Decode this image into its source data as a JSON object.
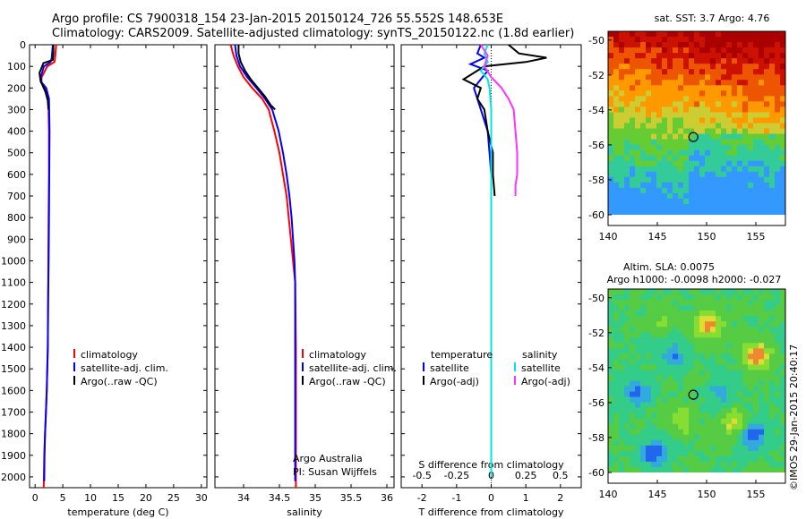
{
  "header": {
    "line1": "Argo profile: CS 7900318_154 23-Jan-2015 20150124_726 55.552S 148.653E",
    "line2": "Climatology: CARS2009. Satellite-adjusted climatology: synTS_20150122.nc (1.8d earlier)"
  },
  "colors": {
    "climatology": "#ff0000",
    "satellite": "#0000ff",
    "argo": "#000000",
    "s_satellite": "#00e5e5",
    "s_argo": "#ff33ff"
  },
  "credit": {
    "line1": "Argo Australia",
    "line2": "PI: Susan Wijffels"
  },
  "imos_stamp": "©IMOS 29-Jan-2015 20:40:17",
  "chart_data": [
    {
      "type": "line",
      "xlabel": "temperature (deg C)",
      "xlim": [
        -1,
        31
      ],
      "xticks": [
        0,
        5,
        10,
        15,
        20,
        25,
        30
      ],
      "ylim": [
        2050,
        0
      ],
      "yticks": [
        0,
        100,
        200,
        300,
        400,
        500,
        600,
        700,
        800,
        900,
        1000,
        1100,
        1200,
        1300,
        1400,
        1500,
        1600,
        1700,
        1800,
        1900,
        2000
      ],
      "legend": [
        "climatology",
        "satellite-adj. clim.",
        "Argo(..raw -QC)"
      ],
      "series": [
        {
          "name": "climatology",
          "color": "#ff0000",
          "x": [
            3.8,
            3.7,
            3.6,
            3.5,
            2.2,
            1.2,
            1.1,
            1.9,
            2.4,
            2.5,
            2.5,
            2.45,
            2.4,
            2.35,
            2.3,
            2.2,
            2.1,
            1.95,
            1.8,
            1.65,
            1.55
          ],
          "y": [
            0,
            30,
            60,
            80,
            100,
            150,
            175,
            200,
            250,
            400,
            600,
            800,
            1000,
            1200,
            1400,
            1500,
            1600,
            1700,
            1800,
            1900,
            2050
          ]
        },
        {
          "name": "satellite-adj. clim.",
          "color": "#0000ff",
          "x": [
            3.2,
            3.1,
            3.0,
            2.8,
            1.6,
            1.0,
            1.2,
            2.0,
            2.5,
            2.6,
            2.55,
            2.5,
            2.45,
            2.35,
            2.3,
            2.2,
            2.1,
            1.95,
            1.8,
            1.7,
            1.65
          ],
          "y": [
            0,
            30,
            60,
            80,
            100,
            150,
            175,
            200,
            250,
            400,
            600,
            800,
            1000,
            1200,
            1400,
            1500,
            1600,
            1700,
            1800,
            1900,
            2020
          ]
        },
        {
          "name": "Argo(..raw -QC)",
          "color": "#000000",
          "x": [
            3.3,
            3.3,
            3.2,
            1.5,
            0.8,
            1.0,
            1.3,
            1.9,
            2.3,
            2.4
          ],
          "y": [
            0,
            40,
            70,
            85,
            130,
            170,
            185,
            220,
            260,
            300
          ]
        }
      ]
    },
    {
      "type": "line",
      "xlabel": "salinity",
      "xlim": [
        33.6,
        36.1
      ],
      "xticks": [
        34,
        34.5,
        35,
        35.5,
        36
      ],
      "xticklabels": [
        "34",
        "34.5",
        "35",
        "35.5",
        "36"
      ],
      "ylim": [
        2050,
        0
      ],
      "legend": [
        "climatology",
        "satellite-adj. clim.",
        "Argo(..raw -QC)"
      ],
      "series": [
        {
          "name": "climatology",
          "color": "#ff0000",
          "x": [
            33.82,
            33.86,
            33.92,
            34.0,
            34.12,
            34.26,
            34.35,
            34.43,
            34.5,
            34.55,
            34.6,
            34.63,
            34.66,
            34.69,
            34.72,
            34.73,
            34.73,
            34.73
          ],
          "y": [
            0,
            50,
            100,
            150,
            200,
            250,
            300,
            400,
            500,
            600,
            700,
            800,
            900,
            1000,
            1100,
            1400,
            1800,
            2050
          ]
        },
        {
          "name": "satellite-adj. clim.",
          "color": "#0000ff",
          "x": [
            33.88,
            33.9,
            33.95,
            34.05,
            34.18,
            34.3,
            34.4,
            34.49,
            34.55,
            34.6,
            34.64,
            34.67,
            34.69,
            34.71,
            34.72,
            34.72,
            34.72,
            34.72
          ],
          "y": [
            0,
            50,
            100,
            150,
            200,
            250,
            300,
            400,
            500,
            600,
            700,
            800,
            900,
            1000,
            1100,
            1400,
            1800,
            2020
          ]
        },
        {
          "name": "Argo(..raw -QC)",
          "color": "#000000",
          "x": [
            33.93,
            33.93,
            33.96,
            34.02,
            34.1,
            34.2,
            34.3,
            34.38,
            34.44
          ],
          "y": [
            0,
            40,
            80,
            120,
            160,
            200,
            240,
            280,
            300
          ]
        }
      ]
    },
    {
      "type": "line",
      "title": "",
      "xlabel": "T difference from climatology",
      "xlabel_top": "S difference from climatology",
      "xlim": [
        -2.6,
        2.6
      ],
      "xticks": [
        -2,
        -1,
        0,
        1,
        2
      ],
      "xticks_s": [
        -0.5,
        -0.25,
        0,
        0.25,
        0.5
      ],
      "xticklabels_s": [
        "-0.5",
        "-0.25",
        "0",
        "0.25",
        "0.5"
      ],
      "ylim": [
        2050,
        0
      ],
      "legend_t_title": "temperature",
      "legend_s_title": "salinity",
      "legend_t": [
        "satellite",
        "Argo(-adj)"
      ],
      "legend_s": [
        "satellite",
        "Argo(-adj)"
      ],
      "series": [
        {
          "name": "satellite",
          "color": "#0000ff",
          "x": [
            -0.3,
            -0.4,
            -0.2,
            -0.6,
            -0.1,
            -0.3,
            -0.5,
            -0.3,
            -0.1,
            -0.05,
            0,
            0,
            0,
            0,
            0,
            0
          ],
          "y": [
            0,
            40,
            60,
            90,
            120,
            160,
            200,
            300,
            400,
            500,
            600,
            800,
            1000,
            1400,
            1800,
            2000
          ]
        },
        {
          "name": "Argo(-adj)",
          "color": "#000000",
          "x": [
            0.5,
            0.8,
            1.6,
            1.0,
            -0.2,
            -0.5,
            -0.8,
            -0.3,
            -0.4,
            -0.2,
            -0.1,
            0.05,
            0.05,
            0.1
          ],
          "y": [
            0,
            40,
            60,
            80,
            100,
            130,
            160,
            200,
            250,
            300,
            400,
            500,
            600,
            700
          ]
        },
        {
          "name": "S satellite",
          "color": "#00e5e5",
          "x": [
            -0.1,
            -0.2,
            -0.1,
            -0.3,
            -0.1,
            -0.05,
            0,
            0,
            0,
            0,
            0,
            0,
            0
          ],
          "y": [
            0,
            40,
            80,
            120,
            160,
            200,
            300,
            400,
            600,
            1000,
            1400,
            1800,
            2000
          ]
        },
        {
          "name": "S Argo(-adj)",
          "color": "#ff33ff",
          "x": [
            -0.3,
            -0.1,
            -0.2,
            0,
            0.3,
            0.5,
            0.65,
            0.7,
            0.75,
            0.75,
            0.7,
            0.7
          ],
          "y": [
            0,
            50,
            100,
            150,
            200,
            250,
            300,
            400,
            500,
            600,
            650,
            700
          ]
        }
      ]
    },
    {
      "type": "heatmap",
      "title": "sat. SST: 3.7 Argo: 4.76",
      "xlim": [
        140,
        158
      ],
      "ylim": [
        -60,
        -49.5
      ],
      "xticks": [
        140,
        145,
        150,
        155
      ],
      "yticks": [
        -50,
        -52,
        -54,
        -56,
        -58,
        -60
      ],
      "marker": {
        "lon": 148.653,
        "lat": -55.552
      }
    },
    {
      "type": "heatmap",
      "title": "Altim. SLA: 0.0075",
      "subtitle": "Argo h1000: -0.0098 h2000: -0.027",
      "xlim": [
        140,
        158
      ],
      "ylim": [
        -60,
        -49.5
      ],
      "xticks": [
        140,
        145,
        150,
        155
      ],
      "yticks": [
        -50,
        -52,
        -54,
        -56,
        -58,
        -60
      ],
      "marker": {
        "lon": 148.653,
        "lat": -55.552
      }
    }
  ]
}
